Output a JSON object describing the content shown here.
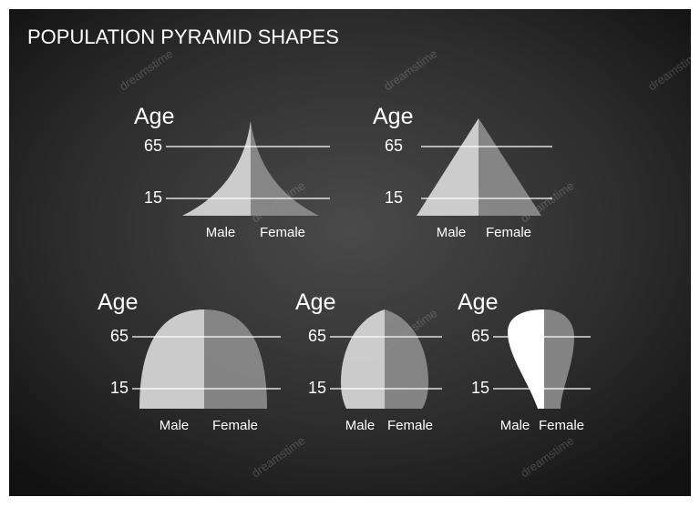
{
  "header": {
    "title": "POPULATION PYRAMID SHAPES"
  },
  "panels": [
    {
      "axis_label": "Age",
      "upper_tick": "65",
      "lower_tick": "15",
      "male_label": "Male",
      "female_label": "Female"
    },
    {
      "axis_label": "Age",
      "upper_tick": "65",
      "lower_tick": "15",
      "male_label": "Male",
      "female_label": "Female"
    },
    {
      "axis_label": "Age",
      "upper_tick": "65",
      "lower_tick": "15",
      "male_label": "Male",
      "female_label": "Female"
    },
    {
      "axis_label": "Age",
      "upper_tick": "65",
      "lower_tick": "15",
      "male_label": "Male",
      "female_label": "Female"
    },
    {
      "axis_label": "Age",
      "upper_tick": "65",
      "lower_tick": "15",
      "male_label": "Male",
      "female_label": "Female"
    }
  ],
  "watermark": "dreamstime"
}
